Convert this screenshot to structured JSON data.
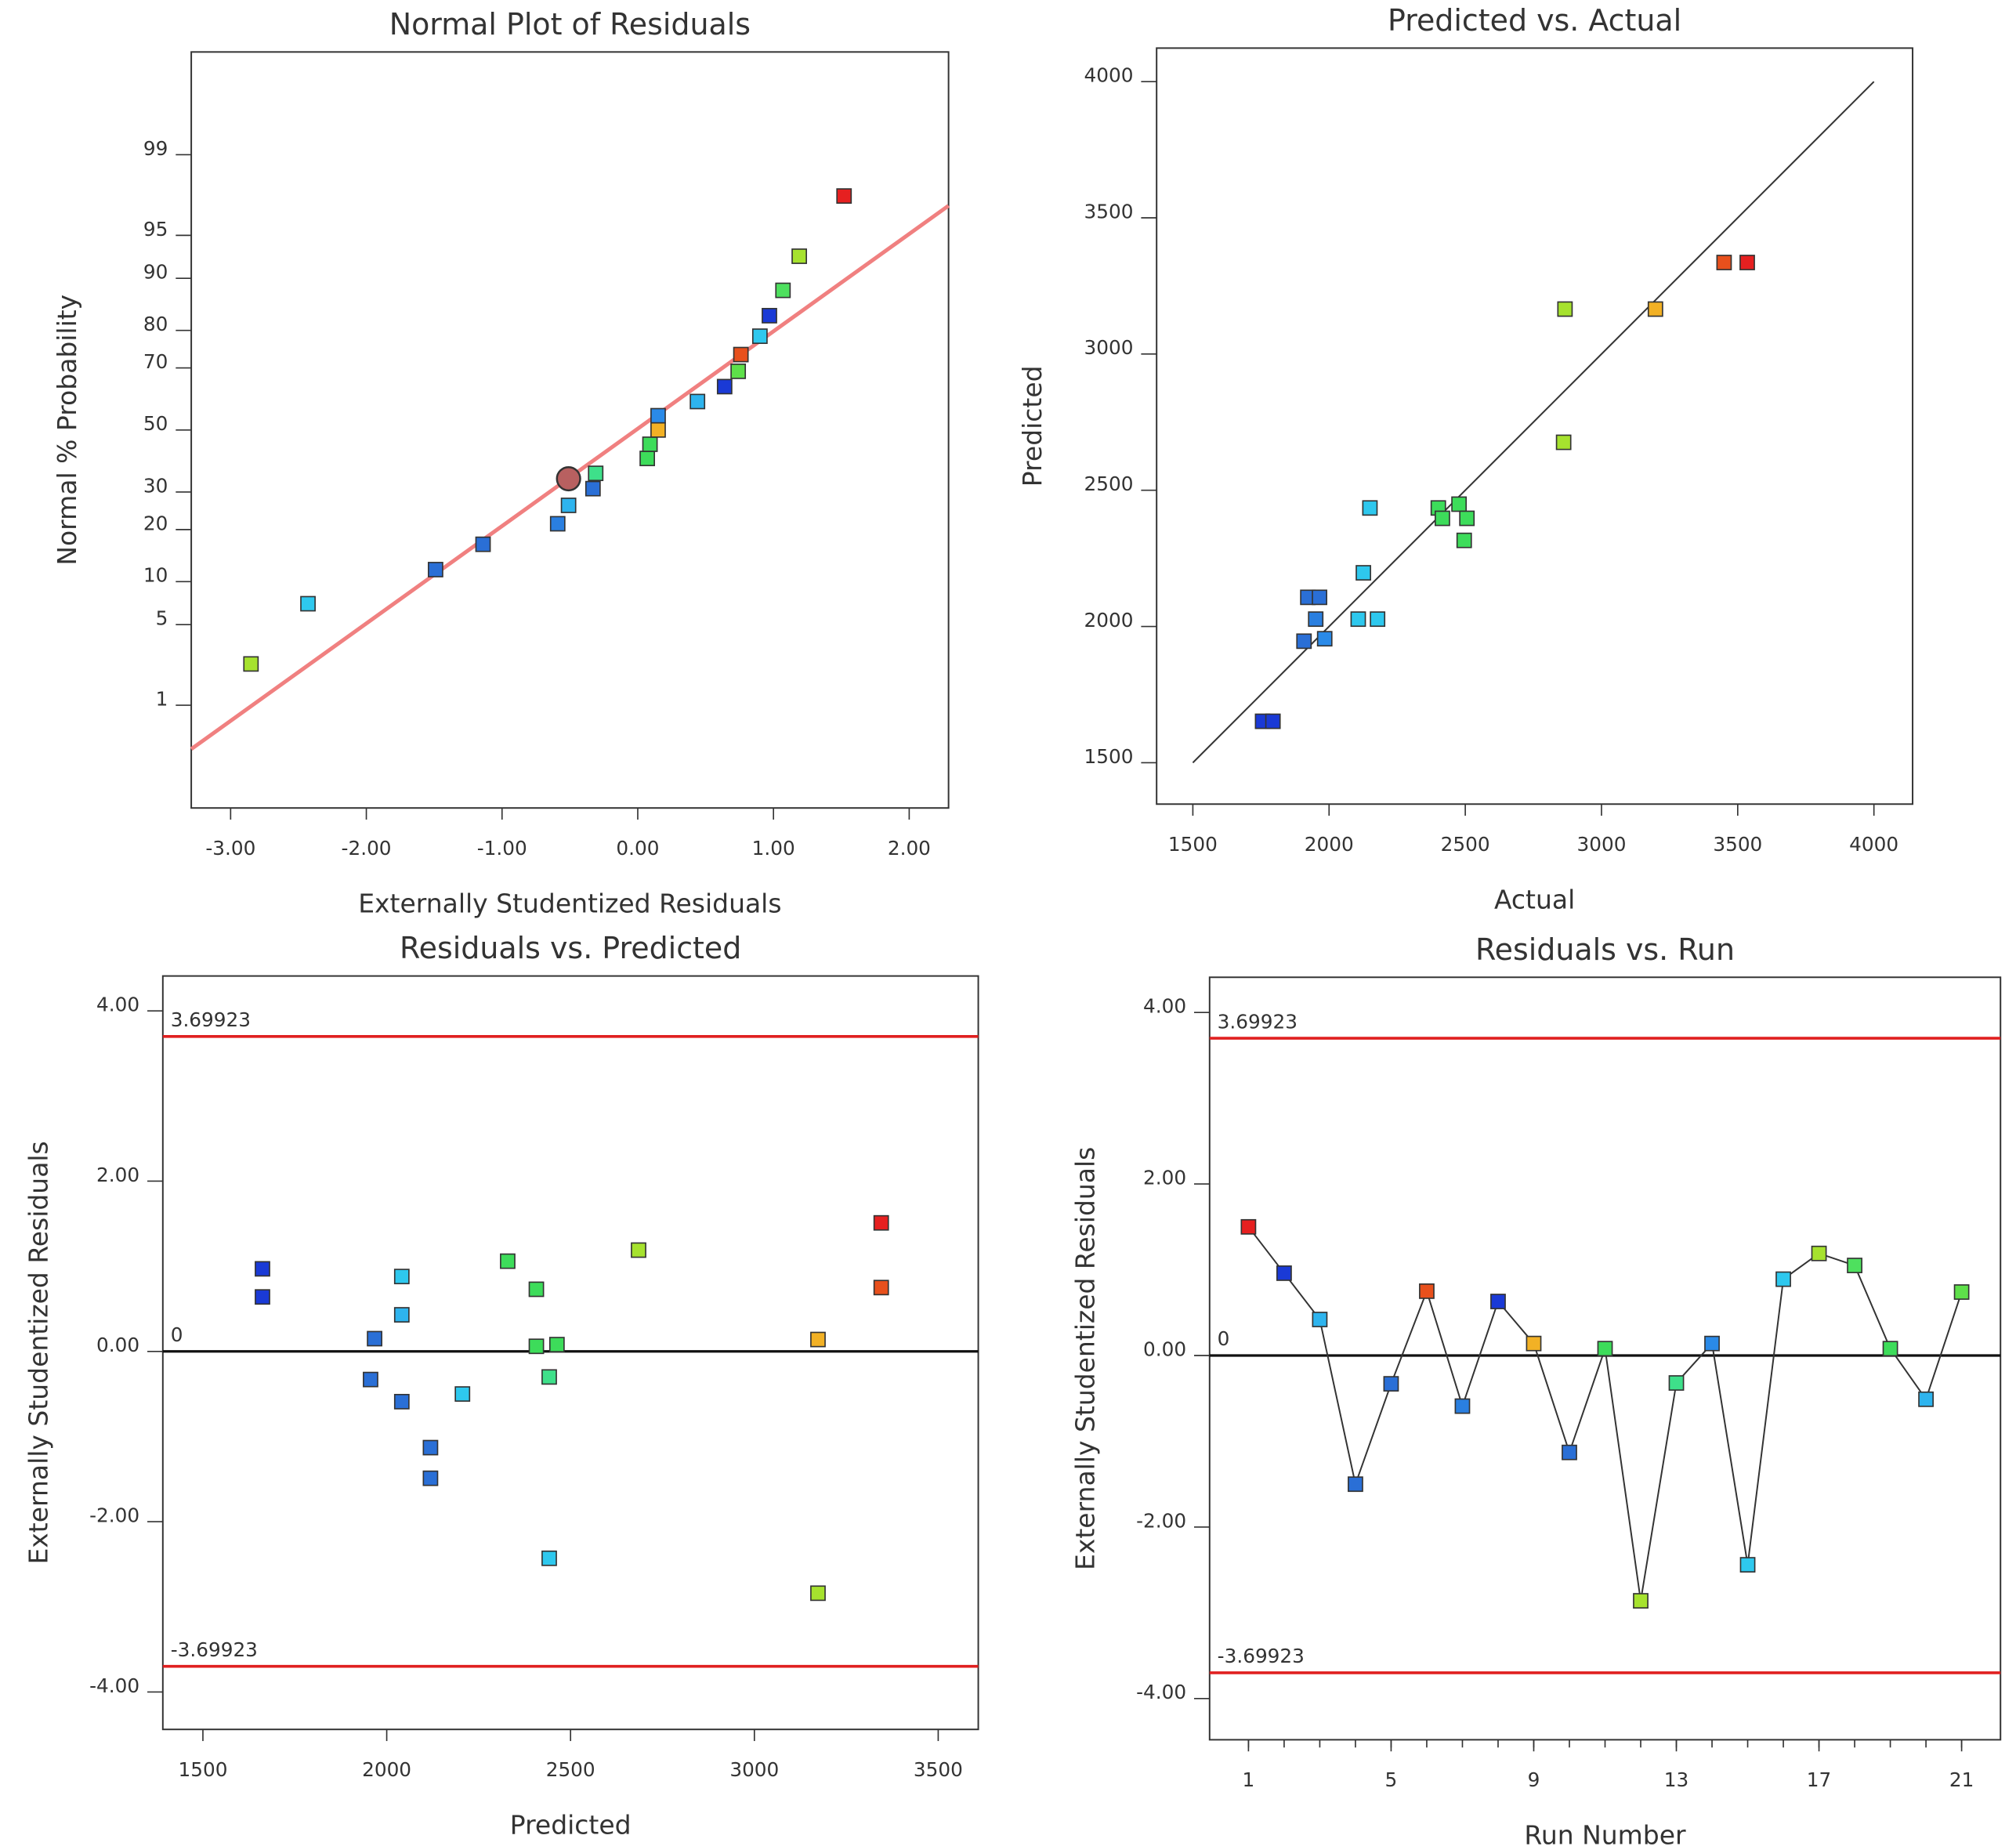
{
  "chart_data": [
    {
      "type": "scatter",
      "title": "Normal Plot of Residuals",
      "xlabel": "Externally Studentized Residuals",
      "ylabel": "Normal % Probability",
      "yscale": "probability",
      "x": [
        -2.85,
        -2.43,
        -1.49,
        -1.14,
        -0.59,
        -0.51,
        -0.33,
        -0.31,
        0.07,
        0.09,
        0.15,
        0.15,
        0.44,
        0.64,
        0.74,
        0.76,
        0.9,
        0.97,
        1.07,
        1.19,
        1.52
      ],
      "values": [
        2.4,
        7.1,
        11.9,
        16.7,
        21.4,
        26.2,
        31,
        35.7,
        40.5,
        45.2,
        50,
        54.8,
        59.5,
        64.3,
        69,
        73.8,
        78.6,
        83.3,
        88.1,
        92.9,
        97.6
      ],
      "colors": [
        "#a6e22e",
        "#2ec8ee",
        "#2a6fd6",
        "#2a6fd6",
        "#2a7fe0",
        "#2eb4ee",
        "#2a6fd6",
        "#3ee08a",
        "#3ddc5a",
        "#3ddc5a",
        "#f2b125",
        "#2a8ae8",
        "#2eb4ee",
        "#1a3ad6",
        "#5ee04a",
        "#e8501c",
        "#2ec8ee",
        "#1a3ad6",
        "#4ee05e",
        "#a6e22e",
        "#e62020"
      ],
      "highlight": {
        "x": -0.51,
        "y": 34,
        "color": "#b86060"
      },
      "fit_line": {
        "x": [
          -3.29,
          2.29
        ],
        "y": [
          0.35,
          97.1
        ],
        "color": "#f08080"
      },
      "xlim": [
        -3.29,
        2.29
      ],
      "ylim": [
        0.07,
        99.93
      ],
      "xticks": [
        {
          "value": -3,
          "label": "-3.00"
        },
        {
          "value": -2,
          "label": "-2.00"
        },
        {
          "value": -1,
          "label": "-1.00"
        },
        {
          "value": 0,
          "label": "0.00"
        },
        {
          "value": 1,
          "label": "1.00"
        },
        {
          "value": 2,
          "label": "2.00"
        }
      ],
      "yticks": [
        1,
        5,
        10,
        20,
        30,
        50,
        70,
        80,
        90,
        95,
        99
      ]
    },
    {
      "type": "scatter",
      "title": "Predicted vs. Actual",
      "xlabel": "Actual",
      "ylabel": "Predicted",
      "x": [
        1756,
        1794,
        1908,
        1984,
        1922,
        1965,
        1951,
        2107,
        2178,
        2126,
        2150,
        2401,
        2416,
        2477,
        2506,
        2496,
        2861,
        2866,
        3198,
        3450,
        3535
      ],
      "values": [
        1652,
        1652,
        1946,
        1955,
        2107,
        2107,
        2027,
        2027,
        2027,
        2197,
        2435,
        2435,
        2397,
        2449,
        2397,
        2316,
        2676,
        3165,
        3165,
        3336,
        3336
      ],
      "colors": [
        "#1a3ad6",
        "#1a3ad6",
        "#2a6fd6",
        "#2a8ae8",
        "#2a6fd6",
        "#2a6fd6",
        "#2a7fe0",
        "#2ec8ee",
        "#2ec8ee",
        "#2ec8ee",
        "#2ec8ee",
        "#3ddc5a",
        "#3ddc5a",
        "#3ddc5a",
        "#3ddc5a",
        "#3ddc5a",
        "#a6e22e",
        "#a6e22e",
        "#f2b125",
        "#e8501c",
        "#e62020"
      ],
      "reference_line": {
        "x": [
          1500,
          4000
        ],
        "y": [
          1500,
          4000
        ],
        "color": "#333333"
      },
      "xlim": [
        1367,
        4142
      ],
      "ylim": [
        1348,
        4123
      ],
      "xticks": [
        1500,
        2000,
        2500,
        3000,
        3500,
        4000
      ],
      "yticks": [
        1500,
        2000,
        2500,
        3000,
        3500,
        4000
      ]
    },
    {
      "type": "scatter",
      "title": "Residuals vs. Predicted",
      "xlabel": "Predicted",
      "ylabel": "Externally Studentized Residuals",
      "x": [
        1662,
        1662,
        1967,
        1956,
        2041,
        2041,
        2041,
        2119,
        2119,
        2206,
        2329,
        2407,
        2407,
        2463,
        2442,
        2442,
        2685,
        3173,
        3173,
        3345,
        3345
      ],
      "values": [
        0.97,
        0.64,
        0.15,
        -0.33,
        0.88,
        0.43,
        -0.59,
        -1.13,
        -1.49,
        -0.5,
        1.06,
        0.73,
        0.06,
        0.08,
        -0.3,
        -2.43,
        1.19,
        0.14,
        -2.84,
        1.51,
        0.75
      ],
      "colors": [
        "#1a3ad6",
        "#1a3ad6",
        "#2a6fd6",
        "#2a6fd6",
        "#2ec8ee",
        "#2eb4ee",
        "#2a6fd6",
        "#2a6fd6",
        "#2a6fd6",
        "#2ec8ee",
        "#3ddc5a",
        "#3ddc5a",
        "#3ddc5a",
        "#3ddc5a",
        "#3ee08a",
        "#2ec8ee",
        "#a6e22e",
        "#f2b125",
        "#a6e22e",
        "#e62020",
        "#e8501c"
      ],
      "limit_lines": [
        {
          "value": 3.69923,
          "label": "3.69923"
        },
        {
          "value": -3.69923,
          "label": "-3.69923"
        }
      ],
      "zero_line": {
        "value": 0,
        "label": "0"
      },
      "xlim": [
        1391,
        3609
      ],
      "ylim": [
        -4.44,
        4.41
      ],
      "xticks": [
        1500,
        2000,
        2500,
        3000,
        3500
      ],
      "yticks": [
        {
          "value": -4,
          "label": "-4.00"
        },
        {
          "value": -2,
          "label": "-2.00"
        },
        {
          "value": 0,
          "label": "0.00"
        },
        {
          "value": 2,
          "label": "2.00"
        },
        {
          "value": 4,
          "label": "4.00"
        }
      ]
    },
    {
      "type": "line",
      "title": "Residuals vs. Run",
      "xlabel": "Run Number",
      "ylabel": "Externally Studentized Residuals",
      "x": [
        1,
        2,
        3,
        4,
        5,
        6,
        7,
        8,
        9,
        10,
        11,
        12,
        13,
        14,
        15,
        16,
        17,
        18,
        19,
        20,
        21
      ],
      "values": [
        1.5,
        0.96,
        0.42,
        -1.5,
        -0.33,
        0.75,
        -0.59,
        0.63,
        0.14,
        -1.13,
        0.08,
        -2.86,
        -0.32,
        0.14,
        -2.44,
        0.89,
        1.19,
        1.05,
        0.08,
        -0.51,
        0.74
      ],
      "colors": [
        "#e62020",
        "#1a3ad6",
        "#2eb4ee",
        "#2a6fd6",
        "#2a6fd6",
        "#e8501c",
        "#2a7fe0",
        "#1a3ad6",
        "#f2b125",
        "#2a6fd6",
        "#3ddc5a",
        "#a6e22e",
        "#3ee08a",
        "#2a8ae8",
        "#2ec8ee",
        "#2ec8ee",
        "#a6e22e",
        "#4ee05e",
        "#3ddc5a",
        "#2eb4ee",
        "#5ee04a"
      ],
      "limit_lines": [
        {
          "value": 3.69923,
          "label": "3.69923"
        },
        {
          "value": -3.69923,
          "label": "-3.69923"
        }
      ],
      "zero_line": {
        "value": 0,
        "label": "0"
      },
      "xlim": [
        -0.09,
        22.09
      ],
      "ylim": [
        -4.48,
        4.41
      ],
      "xticks": [
        1,
        5,
        9,
        13,
        17,
        21
      ],
      "yticks": [
        {
          "value": -4,
          "label": "-4.00"
        },
        {
          "value": -2,
          "label": "-2.00"
        },
        {
          "value": 0,
          "label": "0.00"
        },
        {
          "value": 2,
          "label": "2.00"
        },
        {
          "value": 4,
          "label": "4.00"
        }
      ]
    }
  ]
}
